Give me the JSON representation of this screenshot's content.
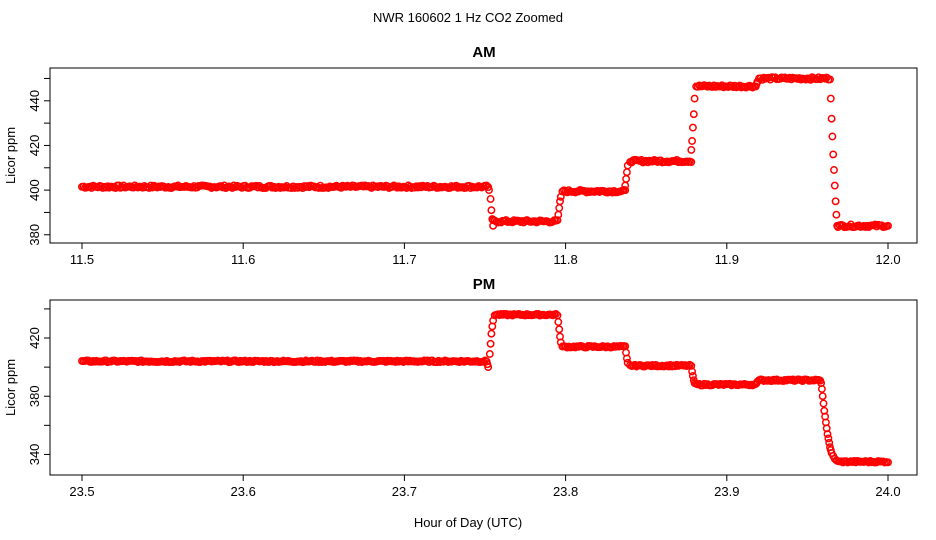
{
  "figure": {
    "title": "NWR  160602  1 Hz CO2 Zoomed",
    "xlabel": "Hour of Day (UTC)"
  },
  "colors": {
    "points": "#ff0000",
    "frame": "#000000"
  },
  "chart_data": [
    {
      "type": "scatter",
      "title": "AM",
      "xlabel": "",
      "ylabel": "Licor ppm",
      "xlim": [
        11.5,
        12.0
      ],
      "ylim": [
        379,
        452
      ],
      "x_ticks": [
        11.5,
        11.6,
        11.7,
        11.8,
        11.9,
        12.0
      ],
      "x_tick_labels": [
        "11.5",
        "11.6",
        "11.7",
        "11.8",
        "11.9",
        "12.0"
      ],
      "y_ticks": [
        380,
        400,
        420,
        440
      ],
      "y_tick_labels": [
        "380",
        "400",
        "420",
        "440"
      ],
      "y_minor_ticks": [
        390,
        410,
        430,
        450
      ],
      "marker": "open-circle",
      "grid": false,
      "segments": [
        {
          "x_start": 11.5,
          "x_end": 11.752,
          "y": 401.5
        },
        {
          "x_start": 11.755,
          "x_end": 11.795,
          "y": 386
        },
        {
          "x_start": 11.798,
          "x_end": 11.837,
          "y": 399.5
        },
        {
          "x_start": 11.84,
          "x_end": 11.878,
          "y": 413
        },
        {
          "x_start": 11.881,
          "x_end": 11.918,
          "y": 446.5
        },
        {
          "x_start": 11.921,
          "x_end": 11.964,
          "y": 450
        },
        {
          "x_start": 11.969,
          "x_end": 12.0,
          "y": 384
        }
      ],
      "transitions": [
        {
          "x": [
            11.7525,
            11.7535,
            11.754,
            11.7545,
            11.755
          ],
          "y": [
            400,
            396,
            391,
            387,
            384
          ]
        },
        {
          "x": [
            11.7955,
            11.796,
            11.7965,
            11.797
          ],
          "y": [
            389,
            392,
            395,
            397
          ]
        },
        {
          "x": [
            11.837,
            11.8375,
            11.838,
            11.8385
          ],
          "y": [
            402,
            405,
            408,
            411
          ]
        },
        {
          "x": [
            11.878,
            11.8785,
            11.879,
            11.8795,
            11.88
          ],
          "y": [
            418,
            422,
            428,
            434,
            441
          ]
        },
        {
          "x": [
            11.9185,
            11.919,
            11.92
          ],
          "y": [
            447.5,
            448.5,
            450
          ]
        },
        {
          "x": [
            11.9645,
            11.965,
            11.9655,
            11.966,
            11.9665,
            11.967,
            11.9675,
            11.968,
            11.9685
          ],
          "y": [
            441,
            432,
            424,
            416,
            409,
            402,
            395,
            389,
            384
          ]
        }
      ]
    },
    {
      "type": "scatter",
      "title": "PM",
      "xlabel": "Hour of Day (UTC)",
      "ylabel": "Licor ppm",
      "xlim": [
        23.5,
        24.0
      ],
      "ylim": [
        330,
        442
      ],
      "x_ticks": [
        23.5,
        23.6,
        23.7,
        23.8,
        23.9,
        24.0
      ],
      "x_tick_labels": [
        "23.5",
        "23.6",
        "23.7",
        "23.8",
        "23.9",
        "24.0"
      ],
      "y_ticks": [
        340,
        380,
        420
      ],
      "y_tick_labels": [
        "340",
        "380",
        "420"
      ],
      "y_minor_ticks": [
        360,
        400,
        440
      ],
      "marker": "open-circle",
      "grid": false,
      "segments": [
        {
          "x_start": 23.5,
          "x_end": 23.751,
          "y": 404
        },
        {
          "x_start": 23.756,
          "x_end": 23.795,
          "y": 436
        },
        {
          "x_start": 23.798,
          "x_end": 23.837,
          "y": 414
        },
        {
          "x_start": 23.84,
          "x_end": 23.878,
          "y": 401
        },
        {
          "x_start": 23.881,
          "x_end": 23.918,
          "y": 388
        },
        {
          "x_start": 23.921,
          "x_end": 23.958,
          "y": 391
        },
        {
          "x_start": 23.969,
          "x_end": 24.0,
          "y": 335
        }
      ],
      "transitions": [
        {
          "x": [
            23.7515,
            23.752
          ],
          "y": [
            402,
            400
          ]
        },
        {
          "x": [
            23.753,
            23.7535,
            23.754,
            23.7545,
            23.755
          ],
          "y": [
            409,
            416,
            423,
            428,
            432
          ]
        },
        {
          "x": [
            23.7955,
            23.796,
            23.7965,
            23.797
          ],
          "y": [
            431,
            426,
            421,
            417
          ]
        },
        {
          "x": [
            23.8375,
            23.838,
            23.8385
          ],
          "y": [
            410,
            406,
            403
          ]
        },
        {
          "x": [
            23.8785,
            23.879,
            23.8795,
            23.88
          ],
          "y": [
            397,
            394,
            391,
            389
          ]
        },
        {
          "x": [
            23.9185,
            23.919,
            23.92
          ],
          "y": [
            389,
            390,
            391
          ]
        },
        {
          "x": [
            23.9585,
            23.959,
            23.9595,
            23.96,
            23.9605,
            23.961,
            23.9615,
            23.962,
            23.9625,
            23.963,
            23.9635,
            23.964,
            23.9645,
            23.965,
            23.966,
            23.967,
            23.968
          ],
          "y": [
            389,
            385,
            380,
            375,
            370,
            366,
            362,
            358,
            354,
            351,
            348,
            345,
            343,
            341,
            339,
            337,
            336
          ]
        }
      ]
    }
  ]
}
